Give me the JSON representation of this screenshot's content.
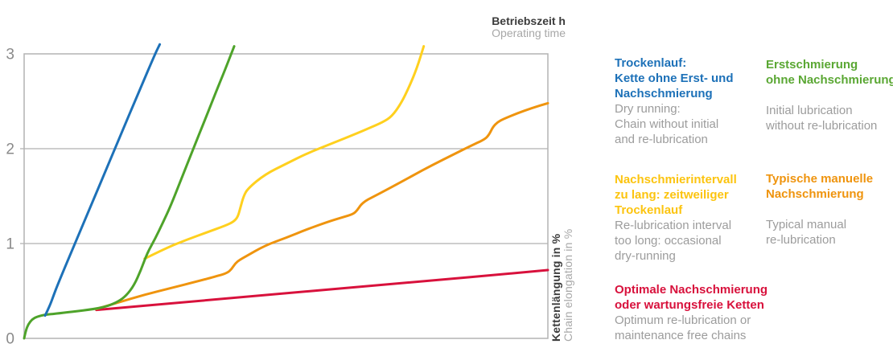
{
  "chart": {
    "x_axis_title_de": "Betriebszeit h",
    "x_axis_title_en": "Operating time",
    "y_axis_title_de": "Kettenlängung in %",
    "y_axis_title_en": "Chain elongation in %",
    "frame_color": "#b3b3b3",
    "grid_color": "#b0b0b0",
    "tick_color": "#8a8a8a"
  },
  "chart_data": {
    "type": "line",
    "title": "",
    "xlabel": "Betriebszeit h (Operating time)",
    "ylabel": "Kettenlängung in % (Chain elongation in %)",
    "xlim": [
      0,
      100
    ],
    "ylim": [
      0,
      3
    ],
    "yticks": [
      0,
      1,
      2,
      3
    ],
    "xticks": [],
    "grid": "horizontal",
    "legend_position": "right",
    "series": [
      {
        "name_de": "Trockenlauf: Kette ohne Erst- und Nachschmierung",
        "name_en": "Dry running: Chain without initial and re-lubrication",
        "color": "#1d71b8",
        "points": [
          [
            4,
            0.24
          ],
          [
            4.8,
            0.33
          ],
          [
            5.6,
            0.45
          ],
          [
            6.5,
            0.58
          ],
          [
            10,
            1.04
          ],
          [
            14,
            1.56
          ],
          [
            18,
            2.09
          ],
          [
            22,
            2.61
          ],
          [
            25,
            3.0
          ],
          [
            25.9,
            3.1
          ]
        ]
      },
      {
        "name_de": "Erstschmierung ohne Nachschmierung",
        "name_en": "Initial lubrication without re-lubrication",
        "color": "#4ea32a",
        "points": [
          [
            0,
            0
          ],
          [
            0.3,
            0.08
          ],
          [
            0.8,
            0.15
          ],
          [
            1.5,
            0.2
          ],
          [
            2.5,
            0.23
          ],
          [
            4,
            0.25
          ],
          [
            6,
            0.26
          ],
          [
            9,
            0.28
          ],
          [
            13.5,
            0.31
          ],
          [
            16,
            0.34
          ],
          [
            18,
            0.39
          ],
          [
            19.5,
            0.45
          ],
          [
            21,
            0.56
          ],
          [
            22.3,
            0.72
          ],
          [
            23.5,
            0.9
          ],
          [
            25,
            1.05
          ],
          [
            26.5,
            1.22
          ],
          [
            28,
            1.4
          ],
          [
            30,
            1.68
          ],
          [
            32.3,
            2.0
          ],
          [
            34.5,
            2.3
          ],
          [
            36.5,
            2.58
          ],
          [
            38.5,
            2.85
          ],
          [
            40.1,
            3.08
          ]
        ]
      },
      {
        "name_de": "Nachschmierintervall zu lang: zeitweiliger Trockenlauf",
        "name_en": "Re-lubrication interval too long: occasional dry-running",
        "color": "#ffd01e",
        "points": [
          [
            23,
            0.84
          ],
          [
            27,
            0.95
          ],
          [
            31,
            1.04
          ],
          [
            35,
            1.12
          ],
          [
            38.5,
            1.19
          ],
          [
            40,
            1.23
          ],
          [
            40.8,
            1.28
          ],
          [
            41.3,
            1.38
          ],
          [
            41.9,
            1.5
          ],
          [
            42.7,
            1.58
          ],
          [
            46,
            1.73
          ],
          [
            50,
            1.84
          ],
          [
            54,
            1.95
          ],
          [
            59,
            2.06
          ],
          [
            63,
            2.15
          ],
          [
            66,
            2.22
          ],
          [
            68.5,
            2.28
          ],
          [
            70.2,
            2.34
          ],
          [
            72,
            2.48
          ],
          [
            73.5,
            2.65
          ],
          [
            75,
            2.85
          ],
          [
            76.3,
            3.08
          ]
        ]
      },
      {
        "name_de": "Typische manuelle Nachschmierung",
        "name_en": "Typical manual re-lubrication",
        "color": "#ef940e",
        "points": [
          [
            13.8,
            0.31
          ],
          [
            18,
            0.38
          ],
          [
            23,
            0.46
          ],
          [
            28,
            0.53
          ],
          [
            33,
            0.6
          ],
          [
            37,
            0.66
          ],
          [
            38.8,
            0.69
          ],
          [
            39.6,
            0.73
          ],
          [
            40.3,
            0.79
          ],
          [
            41.2,
            0.83
          ],
          [
            42.2,
            0.86
          ],
          [
            46,
            0.98
          ],
          [
            50,
            1.06
          ],
          [
            54,
            1.15
          ],
          [
            58,
            1.23
          ],
          [
            61,
            1.28
          ],
          [
            62.8,
            1.31
          ],
          [
            63.6,
            1.35
          ],
          [
            64.3,
            1.41
          ],
          [
            65.2,
            1.45
          ],
          [
            66.2,
            1.48
          ],
          [
            70,
            1.59
          ],
          [
            74,
            1.71
          ],
          [
            78,
            1.83
          ],
          [
            82,
            1.94
          ],
          [
            86,
            2.05
          ],
          [
            88,
            2.1
          ],
          [
            88.8,
            2.15
          ],
          [
            89.5,
            2.23
          ],
          [
            90.4,
            2.28
          ],
          [
            91.4,
            2.31
          ],
          [
            94,
            2.37
          ],
          [
            97,
            2.43
          ],
          [
            100,
            2.48
          ]
        ]
      },
      {
        "name_de": "Optimale Nachschmierung oder wartungsfreie Ketten",
        "name_en": "Optimum re-lubrication or maintenance free chains",
        "color": "#d8113c",
        "points": [
          [
            13.8,
            0.3
          ],
          [
            40,
            0.43
          ],
          [
            70,
            0.57
          ],
          [
            100,
            0.72
          ]
        ]
      }
    ]
  },
  "legend": {
    "blocks": [
      {
        "color": "#1d71b8",
        "de": [
          "Trockenlauf:",
          "Kette ohne Erst- und",
          "Nachschmierung"
        ],
        "en": [
          "Dry running:",
          "Chain without initial",
          "and re-lubrication"
        ]
      },
      {
        "color": "#5aa733",
        "de": [
          "Erstschmierung",
          "ohne Nachschmierung"
        ],
        "en": [
          "Initial lubrication",
          "without re-lubrication"
        ]
      },
      {
        "color": "#fcc40f",
        "de": [
          "Nachschmierintervall",
          "zu lang: zeitweiliger",
          "Trockenlauf"
        ],
        "en": [
          "Re-lubrication interval",
          "too long: occasional",
          "dry-running"
        ]
      },
      {
        "color": "#ef940e",
        "de": [
          "Typische manuelle",
          "Nachschmierung"
        ],
        "en": [
          "Typical manual",
          "re-lubrication"
        ]
      },
      {
        "color": "#d8113c",
        "de": [
          "Optimale Nachschmierung",
          "oder wartungsfreie Ketten"
        ],
        "en": [
          "Optimum re-lubrication or",
          "maintenance free chains"
        ]
      }
    ]
  }
}
